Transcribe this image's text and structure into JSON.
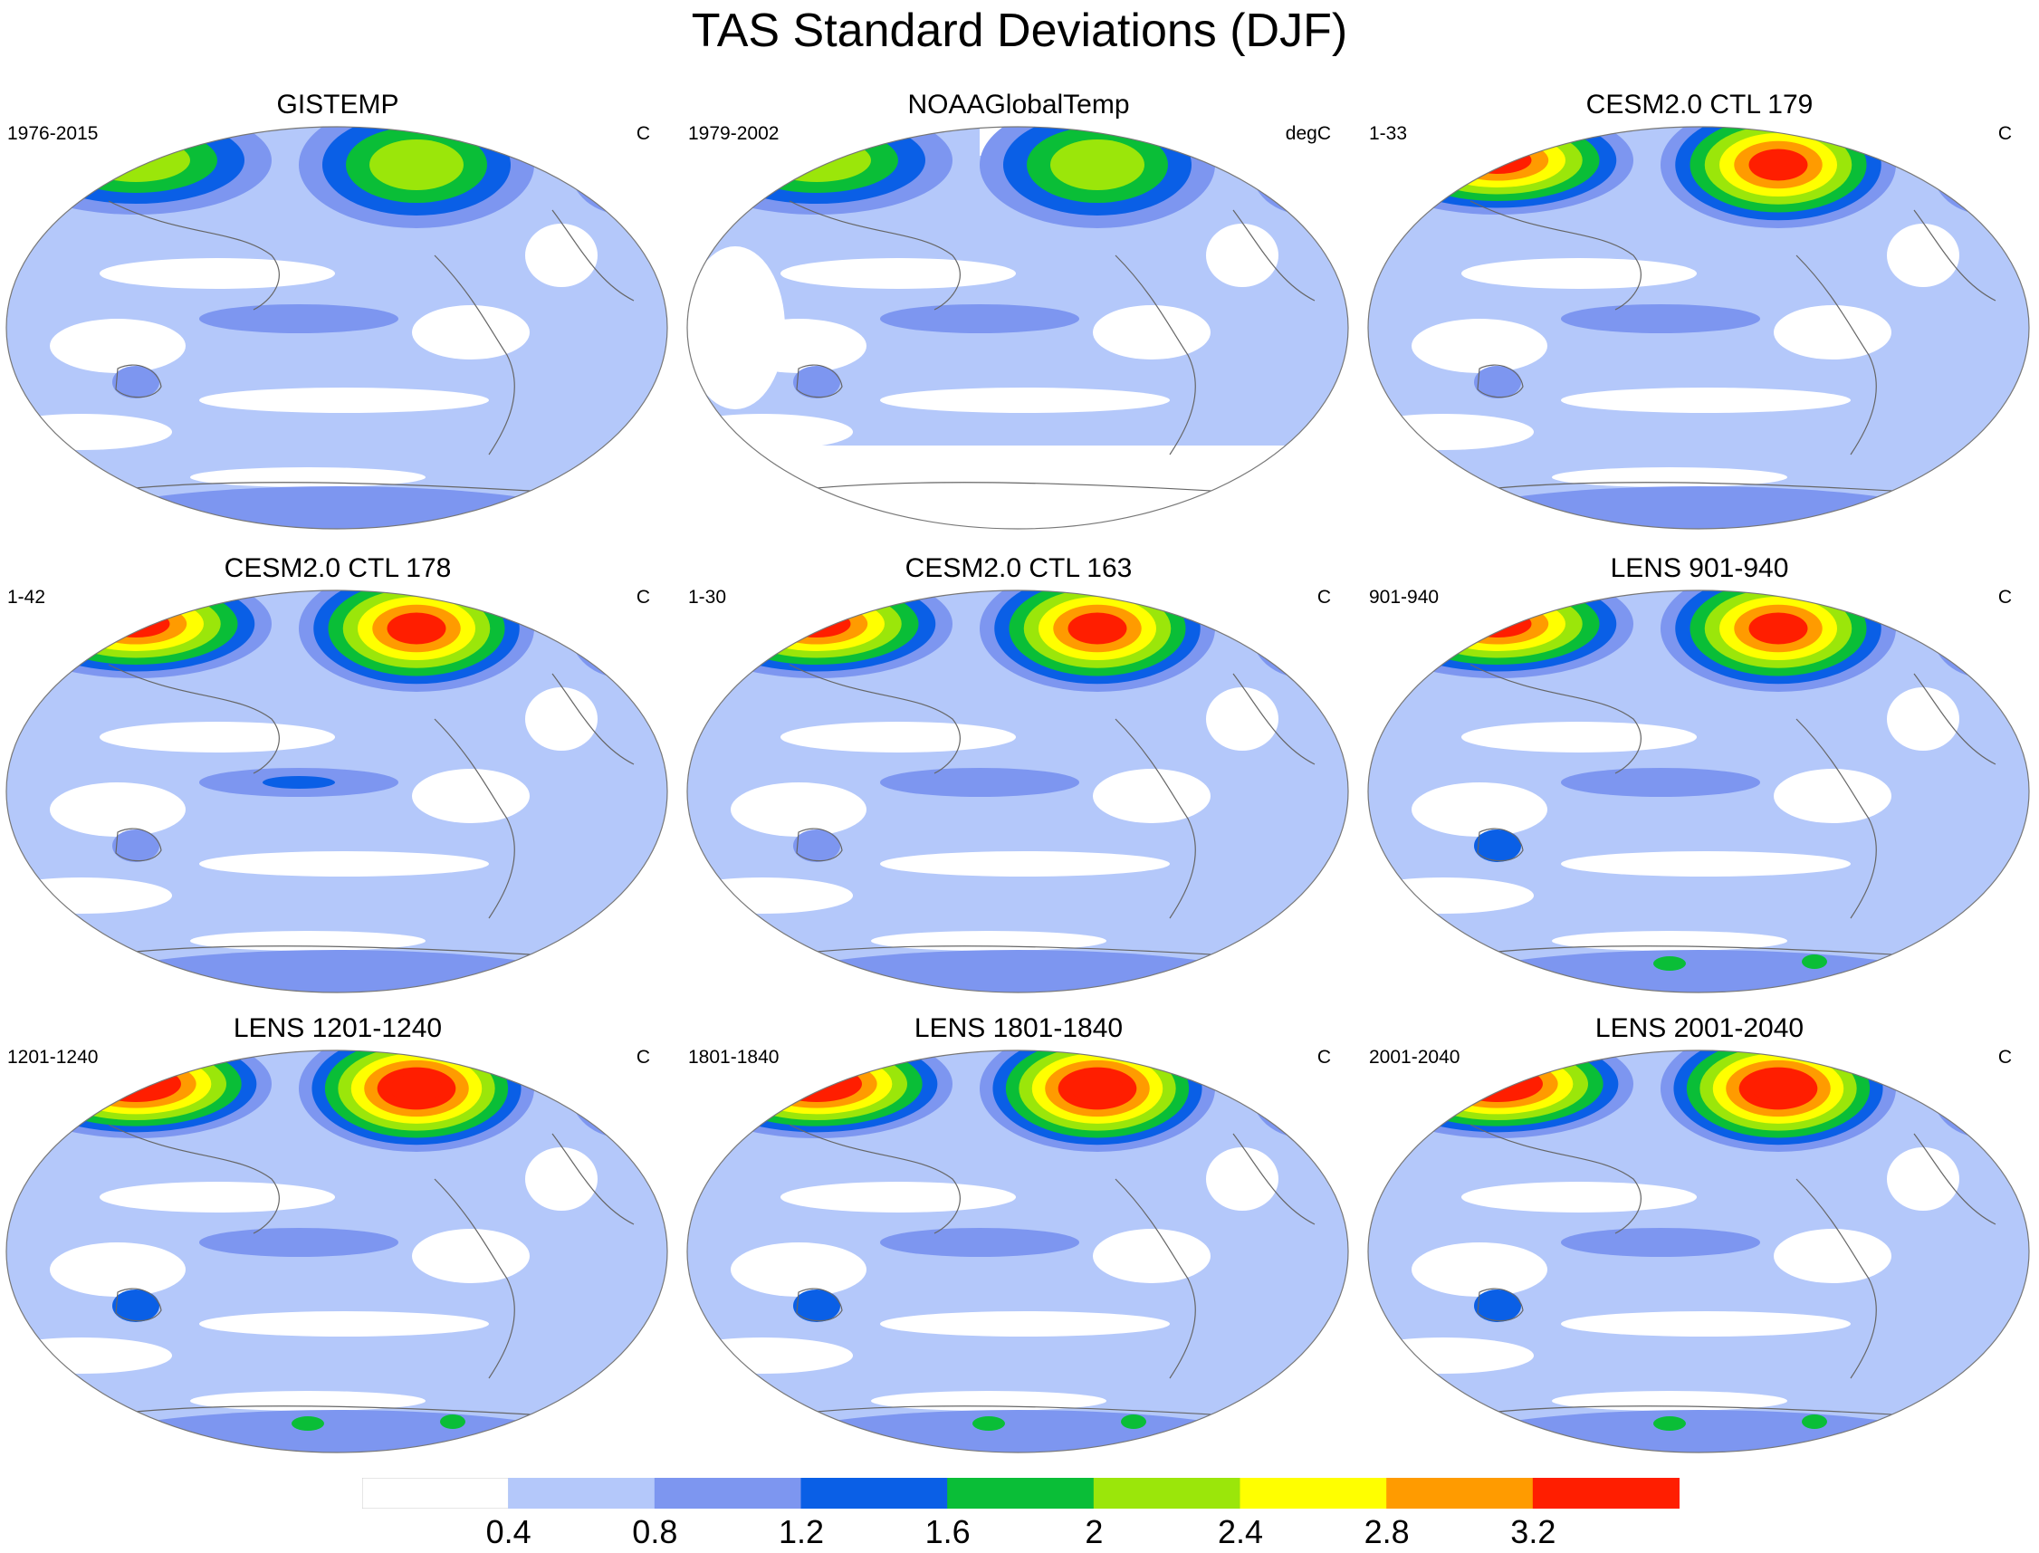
{
  "title": "TAS Standard Deviations (DJF)",
  "colorbar": {
    "colors": [
      "#ffffff",
      "#b4c8fa",
      "#7d96f0",
      "#0a5fe6",
      "#0abe37",
      "#9be60a",
      "#ffff00",
      "#ff9b00",
      "#ff1e00"
    ],
    "labels": [
      "0.4",
      "0.8",
      "1.2",
      "1.6",
      "2",
      "2.4",
      "2.8",
      "3.2"
    ]
  },
  "panels": [
    {
      "title": "GISTEMP",
      "period": "1976-2015",
      "units": "C"
    },
    {
      "title": "NOAAGlobalTemp",
      "period": "1979-2002",
      "units": "degC"
    },
    {
      "title": "CESM2.0 CTL 179",
      "period": "1-33",
      "units": "C"
    },
    {
      "title": "CESM2.0 CTL 178",
      "period": "1-42",
      "units": "C"
    },
    {
      "title": "CESM2.0 CTL 163",
      "period": "1-30",
      "units": "C"
    },
    {
      "title": "LENS 901-940",
      "period": "901-940",
      "units": "C"
    },
    {
      "title": "LENS 1201-1240",
      "period": "1201-1240",
      "units": "C"
    },
    {
      "title": "LENS 1801-1840",
      "period": "1801-1840",
      "units": "C"
    },
    {
      "title": "LENS 2001-2040",
      "period": "2001-2040",
      "units": "C"
    }
  ]
}
